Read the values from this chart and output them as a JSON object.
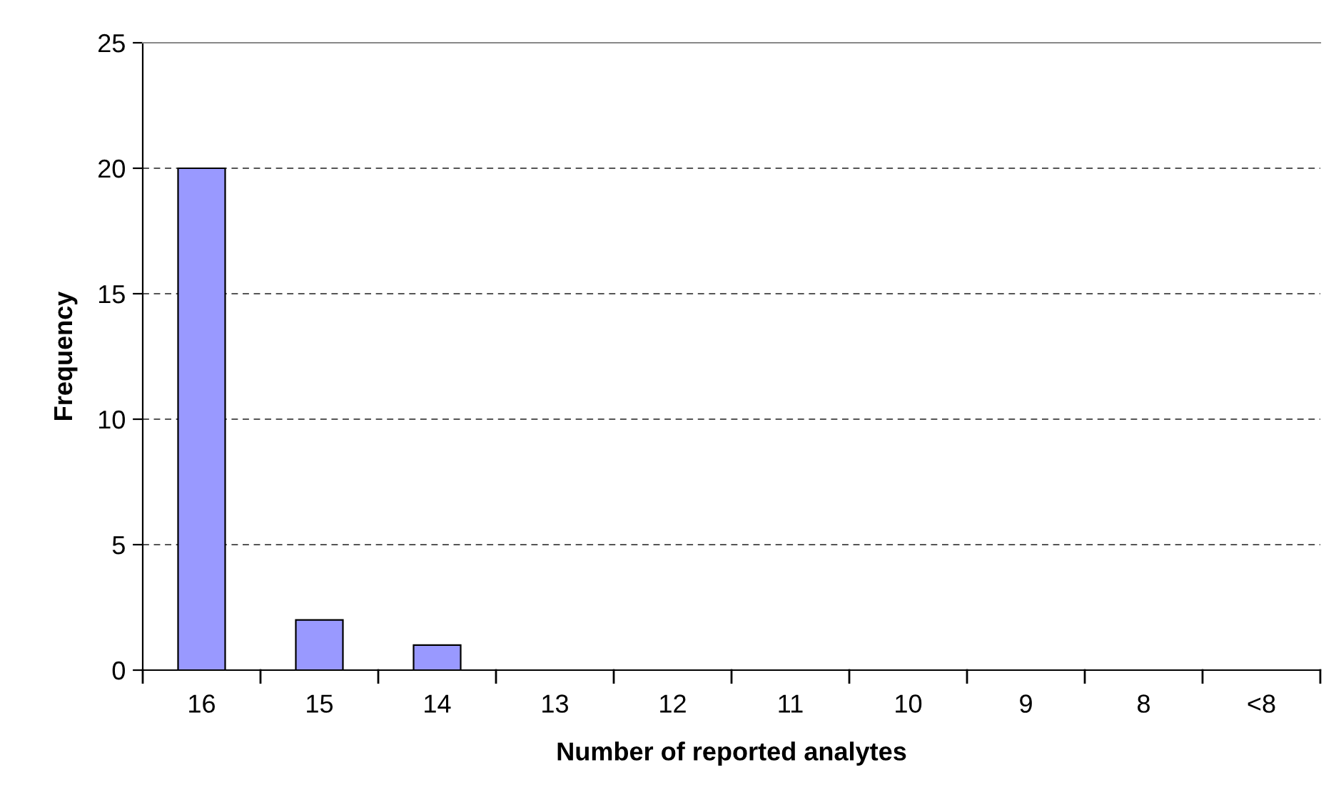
{
  "chart_data": {
    "type": "bar",
    "xlabel": "Number of reported analytes",
    "ylabel": "Frequency",
    "categories": [
      "16",
      "15",
      "14",
      "13",
      "12",
      "11",
      "10",
      "9",
      "8",
      "<8"
    ],
    "values": [
      20,
      2,
      1,
      0,
      0,
      0,
      0,
      0,
      0,
      0
    ],
    "color": "#9999ff",
    "ylim": [
      0,
      25
    ],
    "yticks": [
      0,
      5,
      10,
      15,
      20,
      25
    ],
    "grid": "y",
    "legend": false
  }
}
